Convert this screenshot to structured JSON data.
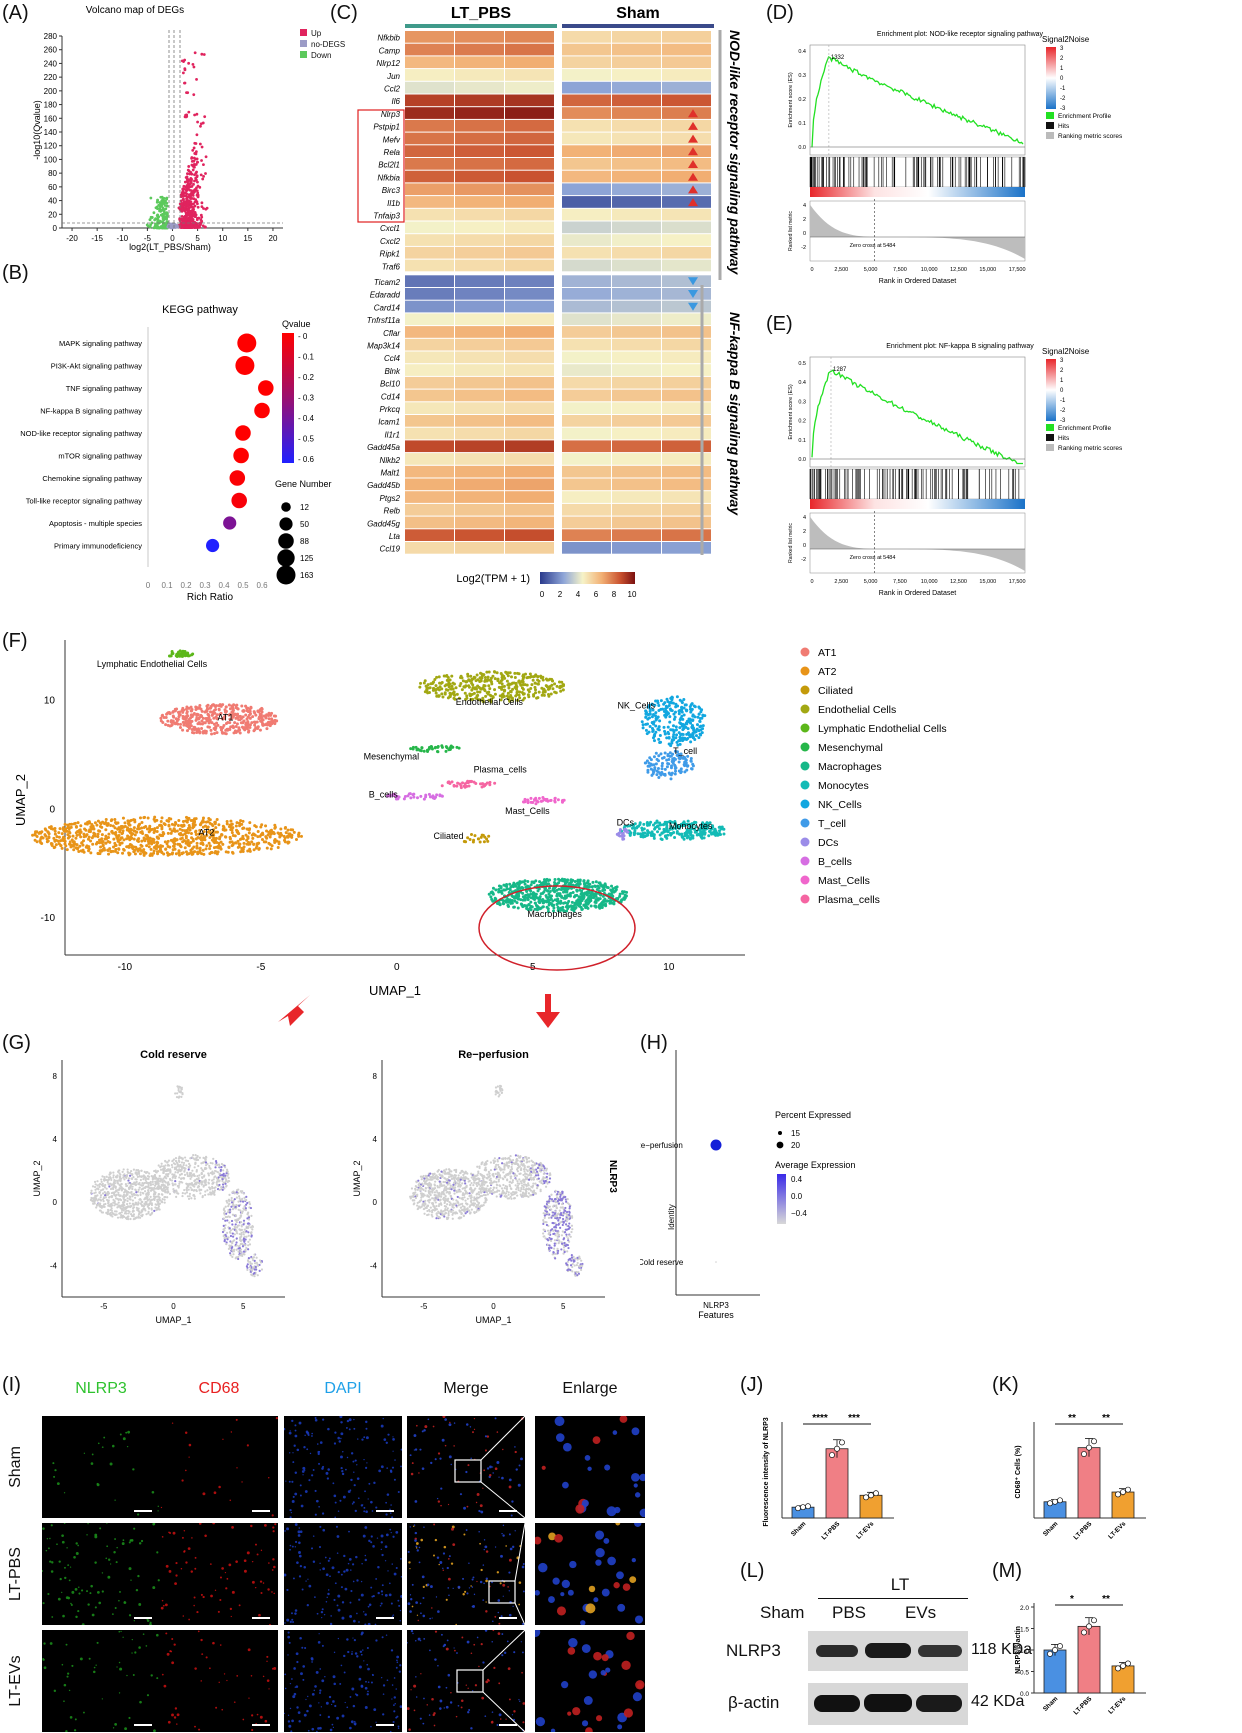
{
  "panel_labels": {
    "A": "(A)",
    "B": "(B)",
    "C": "(C)",
    "D": "(D)",
    "E": "(E)",
    "F": "(F)",
    "G": "(G)",
    "H": "(H)",
    "I": "(I)",
    "J": "(J)",
    "K": "(K)",
    "L": "(L)",
    "M": "(M)"
  },
  "chart_data": [
    {
      "id": "A",
      "type": "scatter",
      "title": "Volcano map of DEGs",
      "xlabel": "log2(LT_PBS/Sham)",
      "ylabel": "-log10(Qvalue)",
      "xlim": [
        -22,
        22
      ],
      "ylim": [
        0,
        280
      ],
      "xticks": [
        "-20",
        "-15",
        "-10",
        "-5",
        "0",
        "5",
        "10",
        "15",
        "20"
      ],
      "yticks": [
        "0",
        "20",
        "40",
        "60",
        "80",
        "100",
        "120",
        "140",
        "160",
        "180",
        "200",
        "220",
        "240",
        "260",
        "280"
      ],
      "legend": [
        "Up",
        "no-DEGS",
        "Down"
      ],
      "colors": {
        "Up": "#e0245e",
        "no-DEGS": "#9b9bc6",
        "Down": "#5cc95c"
      },
      "legend_position": "top-right"
    },
    {
      "id": "B",
      "type": "scatter",
      "title": "KEGG pathway",
      "xlabel": "Rich Ratio",
      "xlim": [
        0,
        0.6
      ],
      "xticks": [
        "0",
        "0.1",
        "0.2",
        "0.3",
        "0.4",
        "0.5",
        "0.6"
      ],
      "categories": [
        "MAPK signaling pathway",
        "PI3K-Akt signaling pathway",
        "TNF signaling pathway",
        "NF-kappa B signaling pathway",
        "NOD-like receptor signaling pathway",
        "mTOR signaling pathway",
        "Chemokine signaling pathway",
        "Toll-like receptor signaling pathway",
        "Apoptosis - multiple species",
        "Primary immunodeficiency"
      ],
      "rich_ratio": [
        0.52,
        0.51,
        0.62,
        0.6,
        0.5,
        0.49,
        0.47,
        0.48,
        0.43,
        0.34
      ],
      "qvalue": [
        0.0,
        0.0,
        0.0,
        0.0,
        0.0,
        0.0,
        0.01,
        0.02,
        0.35,
        0.6
      ],
      "gene_number": [
        163,
        163,
        88,
        88,
        88,
        88,
        88,
        88,
        50,
        50
      ],
      "colorbar_title": "Qvalue",
      "colorbar_ticks": [
        "0",
        "0.1",
        "0.2",
        "0.3",
        "0.4",
        "0.5",
        "0.6"
      ],
      "size_title": "Gene Number",
      "size_ticks": [
        "12",
        "50",
        "88",
        "125",
        "163"
      ]
    },
    {
      "id": "C",
      "type": "heatmap",
      "columns_groups": [
        "LT_PBS",
        "Sham"
      ],
      "rows": [
        "Nfkbib",
        "Camp",
        "Nlrp12",
        "Jun",
        "Ccl2",
        "Il6",
        "Nlrp3",
        "Pstpip1",
        "Mefv",
        "Rela",
        "Bcl2l1",
        "Nfkbia",
        "Birc3",
        "Il1b",
        "Tnfaip3",
        "Cxcl1",
        "Cxcl2",
        "Ripk1",
        "Traf6",
        "Ticam2",
        "Edaradd",
        "Card14",
        "Tnfrsf11a",
        "Cflar",
        "Map3k14",
        "Ccl4",
        "Blnk",
        "Bcl10",
        "Cd14",
        "Prkcq",
        "Icam1",
        "Il1r1",
        "Gadd45a",
        "Nlkb2",
        "Malt1",
        "Gadd45b",
        "Ptgs2",
        "Relb",
        "Gadd45g",
        "Lta",
        "Ccl19"
      ],
      "values_lt": [
        7.2,
        7.6,
        6.4,
        4.8,
        4.2,
        9.0,
        9.5,
        7.8,
        7.9,
        8.2,
        7.8,
        8.3,
        7.0,
        6.4,
        5.2,
        4.6,
        5.2,
        5.6,
        5.2,
        1.5,
        1.7,
        2.2,
        4.6,
        6.4,
        5.6,
        5.0,
        4.8,
        5.8,
        6.0,
        5.0,
        6.0,
        5.2,
        8.8,
        5.0,
        6.4,
        6.6,
        6.4,
        5.8,
        6.2,
        8.4,
        5.4
      ],
      "values_sham": [
        5.4,
        6.0,
        5.6,
        4.6,
        2.6,
        8.2,
        7.4,
        5.2,
        5.0,
        6.6,
        6.0,
        6.4,
        2.6,
        1.0,
        4.8,
        3.8,
        4.4,
        5.2,
        4.0,
        3.0,
        2.8,
        3.2,
        4.2,
        5.8,
        5.2,
        4.6,
        4.4,
        5.4,
        5.8,
        4.6,
        5.6,
        4.6,
        8.0,
        4.6,
        6.0,
        6.0,
        4.8,
        5.4,
        5.8,
        7.6,
        2.2
      ],
      "side_labels": [
        "NOD-like receptor signaling pathway",
        "NF-kappa B signaling pathway"
      ],
      "colorbar_title": "Log2(TPM + 1)",
      "colorbar_ticks": [
        "0",
        "2",
        "4",
        "6",
        "8",
        "10"
      ]
    },
    {
      "id": "D",
      "type": "line",
      "title": "Enrichment plot: NOD-like receptor signaling pathway",
      "ylabel": "Enrichment score (ES)",
      "xlabel": "Rank in Ordered Dataset",
      "peak_label": "1332",
      "yticks": [
        "0.0",
        "0.1",
        "0.2",
        "0.3",
        "0.4"
      ],
      "xticks": [
        "0",
        "2,500",
        "5,000",
        "7,500",
        "10,000",
        "12,500",
        "15,000",
        "17,500"
      ],
      "metric_label": "Ranked list metric",
      "metric_ticks": [
        "4",
        "2",
        "0",
        "-2"
      ],
      "zero_cross": "Zero cross at 5484",
      "colorbar_title": "Signal2Noise",
      "colorbar_ticks": [
        "3",
        "2",
        "1",
        "0",
        "-1",
        "-2",
        "-3"
      ],
      "legend": [
        "Enrichment Profile",
        "Hits",
        "Ranking metric scores"
      ]
    },
    {
      "id": "E",
      "type": "line",
      "title": "Enrichment plot: NF-kappa B signaling pathway",
      "ylabel": "Enrichment score (ES)",
      "xlabel": "Rank in Ordered Dataset",
      "peak_label": "1287",
      "yticks": [
        "0.0",
        "0.1",
        "0.2",
        "0.3",
        "0.4",
        "0.5"
      ],
      "xticks": [
        "0",
        "2,500",
        "5,000",
        "7,500",
        "10,000",
        "12,500",
        "15,000",
        "17,500"
      ],
      "metric_label": "Ranked list metric",
      "metric_ticks": [
        "4",
        "2",
        "0",
        "-2"
      ],
      "zero_cross": "Zero cross at 5484",
      "colorbar_title": "Signal2Noise",
      "colorbar_ticks": [
        "3",
        "2",
        "1",
        "0",
        "-1",
        "-2",
        "-3"
      ],
      "legend": [
        "Enrichment Profile",
        "Hits",
        "Ranking metric scores"
      ]
    },
    {
      "id": "F",
      "type": "scatter",
      "xlabel": "UMAP_1",
      "ylabel": "UMAP_2",
      "xticks": [
        "-10",
        "-5",
        "0",
        "5",
        "10"
      ],
      "yticks": [
        "10",
        "0",
        "-10"
      ],
      "clusters": [
        "AT1",
        "AT2",
        "Ciliated",
        "Endothelial Cells",
        "Lymphatic Endothelial Cells",
        "Mesenchymal",
        "Macrophages",
        "Monocytes",
        "NK_Cells",
        "T_cell",
        "DCs",
        "B_cells",
        "Mast_Cells",
        "Plasma_cells"
      ],
      "colors": [
        "#f07b72",
        "#e89418",
        "#c49a0a",
        "#a2a813",
        "#5cb71a",
        "#26b64a",
        "#16b888",
        "#13bbb6",
        "#12a7e0",
        "#3f9be8",
        "#9b8ce8",
        "#d66ee2",
        "#f066cc",
        "#f565a2"
      ]
    },
    {
      "id": "G",
      "type": "scatter",
      "titles": [
        "Cold reserve",
        "Re−perfusion"
      ],
      "xlabel": "UMAP_1",
      "ylabel": "UMAP_2",
      "xticks": [
        "-5",
        "0",
        "5"
      ],
      "yticks": [
        "8",
        "4",
        "0",
        "-4"
      ],
      "gene": "NLRP3"
    },
    {
      "id": "H",
      "type": "scatter",
      "categories": [
        "Re−perfusion",
        "Cold reserve"
      ],
      "xlabel": "Features",
      "feature": "NLRP3",
      "ylabel": "Identity",
      "percent_title": "Percent Expressed",
      "percent_ticks": [
        "15",
        "20"
      ],
      "avg_title": "Average Expression",
      "avg_ticks": [
        "0.4",
        "0.0",
        "−0.4"
      ]
    },
    {
      "id": "J",
      "type": "bar",
      "categories": [
        "Sham",
        "LT-PBS",
        "LT-EVs"
      ],
      "values": [
        1.0,
        6.4,
        2.1
      ],
      "ylabel": "Fluorescence intensity of NLRP3",
      "sig": [
        "****",
        "***"
      ]
    },
    {
      "id": "K",
      "type": "bar",
      "categories": [
        "Sham",
        "LT-PBS",
        "LT-EVs"
      ],
      "values": [
        1.5,
        6.5,
        2.4
      ],
      "ylabel": "CD68⁺ Cells (%)",
      "sig": [
        "**",
        "**"
      ]
    },
    {
      "id": "M",
      "type": "bar",
      "categories": [
        "Sham",
        "LT-PBS",
        "LT-EVs"
      ],
      "values": [
        1.0,
        1.55,
        0.63
      ],
      "ylabel": "NLRP3/β-actin",
      "ylim": [
        0,
        2.0
      ],
      "yticks": [
        "0.0",
        "0.5",
        "1.0",
        "1.5",
        "2.0"
      ],
      "sig": [
        "*",
        "**"
      ]
    }
  ],
  "micro": {
    "columns": [
      "NLRP3",
      "CD68",
      "DAPI",
      "Merge",
      "Enlarge"
    ],
    "rows": [
      "Sham",
      "LT-PBS",
      "LT-EVs"
    ],
    "column_colors": [
      "#2ec22e",
      "#e82020",
      "#1ea0e8",
      "#111111",
      "#111111"
    ]
  },
  "blot": {
    "group": "LT",
    "lanes": [
      "Sham",
      "PBS",
      "EVs"
    ],
    "bands": [
      "NLRP3",
      "β-actin"
    ],
    "kda": [
      "118 KDa",
      "42 KDa"
    ]
  }
}
